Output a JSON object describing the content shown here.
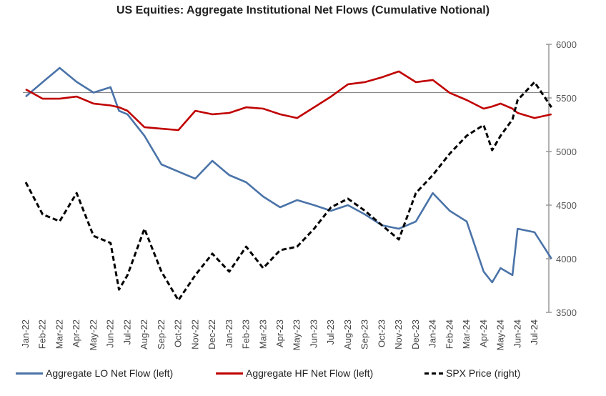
{
  "chart_data": {
    "type": "line",
    "title": "US Equities: Aggregate Institutional Net Flows (Cumulative Notional)",
    "x_tick_labels": [
      "Jan-22",
      "Feb-22",
      "Mar-22",
      "Apr-22",
      "May-22",
      "Jun-22",
      "Jul-22",
      "Aug-22",
      "Sep-22",
      "Oct-22",
      "Nov-22",
      "Dec-22",
      "Jan-23",
      "Feb-23",
      "Mar-23",
      "Apr-23",
      "May-23",
      "Jun-23",
      "Jul-23",
      "Aug-23",
      "Sep-23",
      "Oct-23",
      "Nov-23",
      "Dec-23",
      "Jan-24",
      "Feb-24",
      "Mar-24",
      "Apr-24",
      "May-24",
      "Jun-24",
      "Jul-24"
    ],
    "right_axis": {
      "ylim": [
        3500,
        6000
      ],
      "ticks": [
        "3500",
        "4000",
        "4500",
        "5000",
        "5500",
        "6000"
      ]
    },
    "left_axis": {
      "labels_shown": false
    },
    "reference_line": 5550,
    "legend_position": "bottom",
    "x": [
      0,
      1,
      2,
      3,
      4,
      5,
      5.5,
      6,
      7,
      8,
      9,
      10,
      11,
      12,
      13,
      14,
      15,
      16,
      17,
      18,
      19,
      20,
      21,
      22,
      23,
      24,
      25,
      26,
      27,
      27.5,
      28,
      28.7,
      29,
      30,
      31
    ],
    "series": [
      {
        "name": "Aggregate LO Net Flow (left)",
        "axis": "left",
        "color": "#4a73a8",
        "style": "solid",
        "values": [
          5513,
          5647,
          5780,
          5650,
          5550,
          5600,
          5380,
          5347,
          5147,
          4880,
          4813,
          4747,
          4913,
          4780,
          4713,
          4580,
          4480,
          4547,
          4500,
          4447,
          4500,
          4413,
          4313,
          4280,
          4347,
          4613,
          4447,
          4347,
          3880,
          3780,
          3913,
          3847,
          4280,
          4247,
          4000
        ]
      },
      {
        "name": "Aggregate HF Net Flow (left)",
        "axis": "left",
        "color": "#c00000",
        "style": "solid",
        "values": [
          5580,
          5493,
          5493,
          5513,
          5447,
          5430,
          5413,
          5380,
          5227,
          5213,
          5200,
          5380,
          5347,
          5360,
          5413,
          5400,
          5347,
          5313,
          5413,
          5513,
          5627,
          5647,
          5693,
          5747,
          5647,
          5667,
          5547,
          5480,
          5400,
          5420,
          5447,
          5400,
          5360,
          5313,
          5347
        ]
      },
      {
        "name": "SPX Price (right)",
        "axis": "right",
        "color": "#000000",
        "style": "dashed",
        "values": [
          4713,
          4413,
          4350,
          4613,
          4213,
          4147,
          3713,
          3847,
          4280,
          3880,
          3613,
          3847,
          4047,
          3880,
          4113,
          3913,
          4080,
          4113,
          4280,
          4480,
          4560,
          4447,
          4313,
          4180,
          4613,
          4780,
          4980,
          5147,
          5247,
          5013,
          5147,
          5300,
          5480,
          5647,
          5413
        ]
      }
    ]
  }
}
